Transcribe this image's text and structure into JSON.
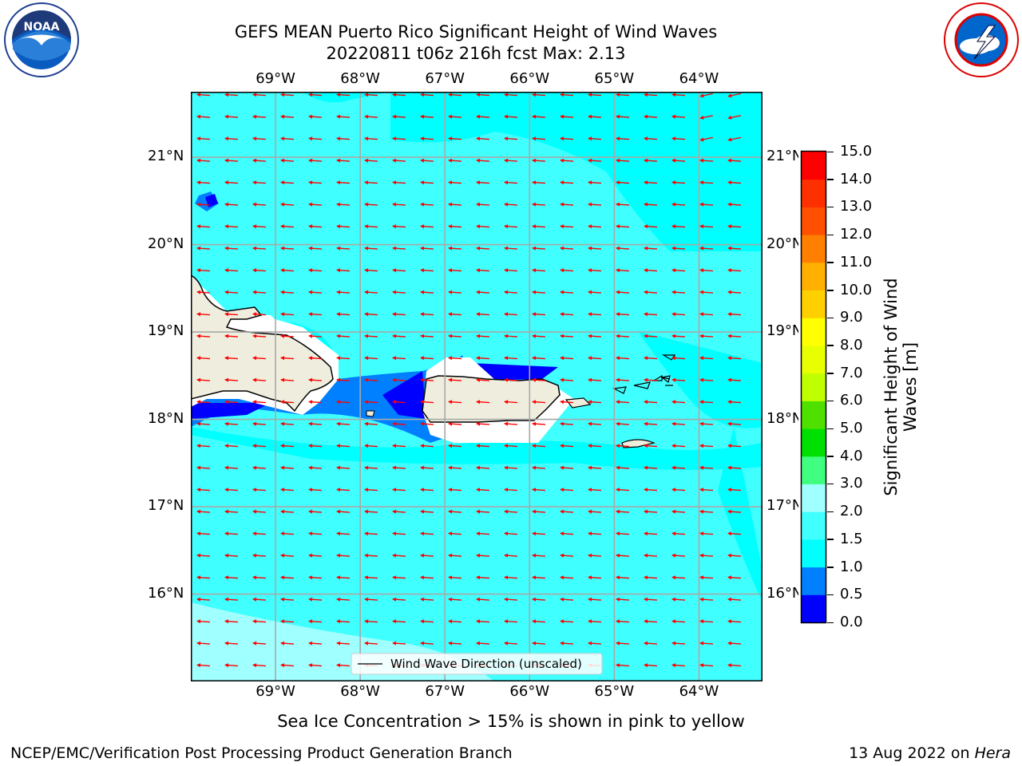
{
  "header": {
    "title_line1": "GEFS MEAN Puerto Rico Significant Height of Wind Waves",
    "title_line2": "20220811 t06z 216h fcst   Max: 2.13"
  },
  "logos": {
    "left": {
      "icon": "noaa-logo-icon",
      "text": "NOAA"
    },
    "right": {
      "icon": "national-weather-service-logo-icon"
    }
  },
  "map": {
    "lon_labels": [
      "69°W",
      "68°W",
      "67°W",
      "66°W",
      "65°W",
      "64°W"
    ],
    "lat_labels": [
      "21°N",
      "20°N",
      "19°N",
      "18°N",
      "17°N",
      "16°N"
    ],
    "lon_range": [
      -70.0,
      -63.25
    ],
    "lat_range": [
      15.0,
      21.75
    ],
    "grid": true,
    "vector_color": "#ff0000",
    "legend": {
      "label": "Wind Wave Direction (unscaled)",
      "position": "bottom-center"
    }
  },
  "colorbar": {
    "label_line1": "Significant Height of Wind",
    "label_line2": "Waves [m]",
    "ticks": [
      "0.0",
      "0.5",
      "1.0",
      "1.5",
      "2.0",
      "3.0",
      "4.0",
      "5.0",
      "6.0",
      "7.0",
      "8.0",
      "9.0",
      "10.0",
      "11.0",
      "12.0",
      "13.0",
      "14.0",
      "15.0"
    ],
    "colors": [
      "#0000ff",
      "#0080ff",
      "#00ffff",
      "#40ffff",
      "#a0ffff",
      "#40ff80",
      "#00e000",
      "#50e000",
      "#c0ff00",
      "#e8ff00",
      "#ffff00",
      "#ffd000",
      "#ffb000",
      "#ff8000",
      "#ff5000",
      "#ff3000",
      "#ff0000"
    ]
  },
  "caption": "Sea Ice Concentration > 15% is shown in pink to yellow",
  "footer": {
    "left": "NCEP/EMC/Verification Post Processing Product Generation Branch",
    "date": "13 Aug 2022 on ",
    "host": "Hera"
  }
}
